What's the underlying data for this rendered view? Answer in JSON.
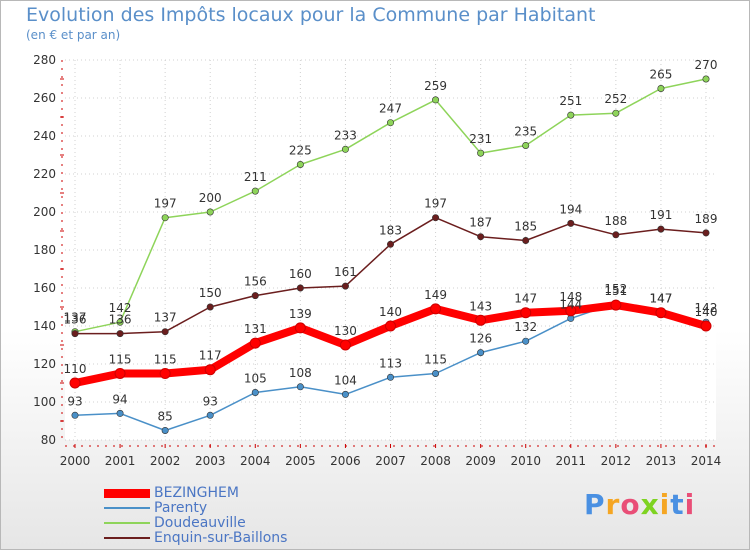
{
  "title": "Evolution des Impôts locaux pour la Commune par Habitant",
  "subtitle": "(en € et par an)",
  "logo_text": "Proxiti",
  "chart_data": {
    "type": "line",
    "x": [
      "2000",
      "2001",
      "2002",
      "2003",
      "2004",
      "2005",
      "2006",
      "2007",
      "2008",
      "2009",
      "2010",
      "2011",
      "2012",
      "2013",
      "2014"
    ],
    "ylim": [
      80,
      280
    ],
    "yticks": [
      80,
      100,
      120,
      140,
      160,
      180,
      200,
      220,
      240,
      260,
      280
    ],
    "grid": true,
    "legend_position": "bottom-left",
    "series": [
      {
        "name": "BEZINGHEM",
        "color": "#ff0000",
        "values": [
          110,
          115,
          115,
          117,
          131,
          139,
          130,
          140,
          149,
          143,
          147,
          148,
          151,
          147,
          140
        ]
      },
      {
        "name": "Parenty",
        "color": "#4a90c8",
        "values": [
          93,
          94,
          85,
          93,
          105,
          108,
          104,
          113,
          115,
          126,
          132,
          144,
          152,
          147,
          142
        ]
      },
      {
        "name": "Doudeauville",
        "color": "#8ed45a",
        "values": [
          137,
          142,
          197,
          200,
          211,
          225,
          233,
          247,
          259,
          231,
          235,
          251,
          252,
          265,
          270
        ]
      },
      {
        "name": "Enquin-sur-Baillons",
        "color": "#6b1e1e",
        "values": [
          136,
          136,
          137,
          150,
          156,
          160,
          161,
          183,
          197,
          187,
          185,
          194,
          188,
          191,
          189
        ]
      }
    ]
  }
}
